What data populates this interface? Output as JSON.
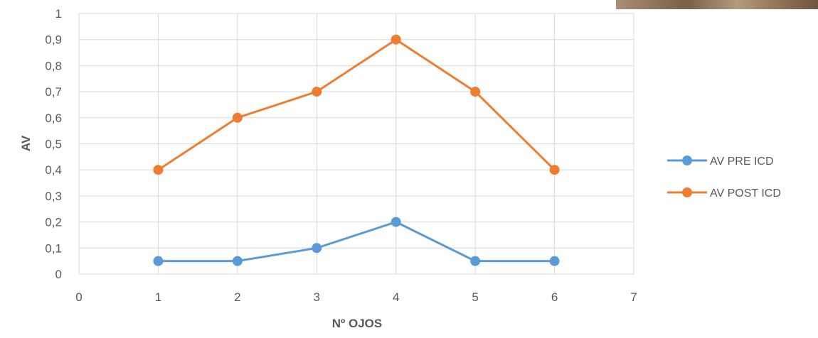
{
  "chart_data": {
    "type": "line",
    "title": "",
    "xlabel": "Nº OJOS",
    "ylabel": "AV",
    "xlim": [
      0,
      7
    ],
    "ylim": [
      0,
      1
    ],
    "x_ticks": [
      "0",
      "1",
      "2",
      "3",
      "4",
      "5",
      "6",
      "7"
    ],
    "y_ticks": [
      "0",
      "0,1",
      "0,2",
      "0,3",
      "0,4",
      "0,5",
      "0,6",
      "0,7",
      "0,8",
      "0,9",
      "1"
    ],
    "grid": true,
    "legend_position": "right",
    "x": [
      1,
      2,
      3,
      4,
      5,
      6
    ],
    "series": [
      {
        "name": "AV PRE ICD",
        "color": "#5b9bd5",
        "values": [
          0.05,
          0.05,
          0.1,
          0.2,
          0.05,
          0.05
        ]
      },
      {
        "name": "AV POST ICD",
        "color": "#ed7d31",
        "values": [
          0.4,
          0.6,
          0.7,
          0.9,
          0.7,
          0.4
        ]
      }
    ]
  },
  "colors": {
    "grid": "#d9d9d9",
    "tick_text": "#595959"
  },
  "decorations": {
    "photo_fragment": "photo-fragment-top-right"
  }
}
